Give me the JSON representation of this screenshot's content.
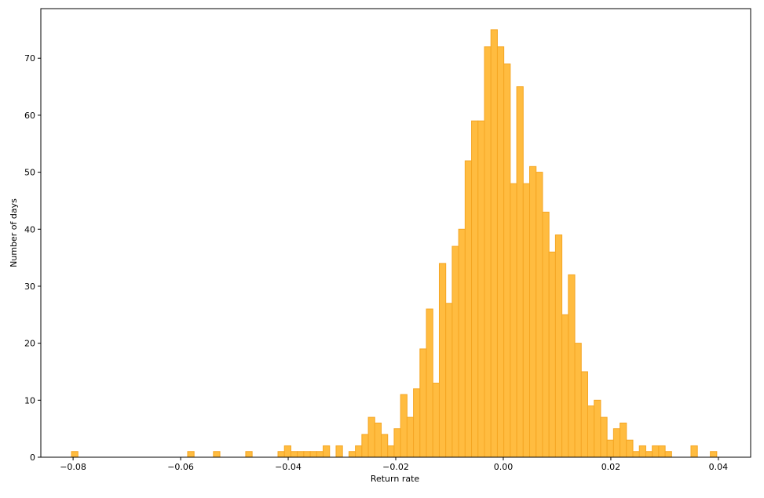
{
  "chart_data": {
    "type": "histogram",
    "xlabel": "Return rate",
    "ylabel": "Number of days",
    "bins": [
      -0.0803,
      -0.0791,
      -0.0779,
      -0.0767,
      -0.0755,
      -0.0743,
      -0.0731,
      -0.0719,
      -0.0707,
      -0.0695,
      -0.0683,
      -0.0671,
      -0.0659,
      -0.0647,
      -0.0635,
      -0.0623,
      -0.0611,
      -0.0599,
      -0.0587,
      -0.0575,
      -0.0563,
      -0.0551,
      -0.0539,
      -0.0527,
      -0.0515,
      -0.0503,
      -0.0491,
      -0.0479,
      -0.0467,
      -0.0455,
      -0.0443,
      -0.0431,
      -0.0419,
      -0.0407,
      -0.0395,
      -0.0383,
      -0.0371,
      -0.0359,
      -0.0347,
      -0.0335,
      -0.0323,
      -0.0311,
      -0.0299,
      -0.0287,
      -0.0275,
      -0.0263,
      -0.0251,
      -0.0239,
      -0.0227,
      -0.0215,
      -0.0203,
      -0.0191,
      -0.0179,
      -0.0167,
      -0.0155,
      -0.0143,
      -0.0131,
      -0.0119,
      -0.0107,
      -0.0095,
      -0.0083,
      -0.0071,
      -0.0059,
      -0.0047,
      -0.0035,
      -0.0023,
      -0.0011,
      0.0001,
      0.0013,
      0.0025,
      0.0037,
      0.0049,
      0.0061,
      0.0073,
      0.0085,
      0.0097,
      0.0109,
      0.0121,
      0.0133,
      0.0145,
      0.0157,
      0.0169,
      0.0181,
      0.0193,
      0.0205,
      0.0217,
      0.0229,
      0.0241,
      0.0253,
      0.0265,
      0.0277,
      0.0289,
      0.0301,
      0.0313,
      0.0325,
      0.0337,
      0.0349,
      0.0361,
      0.0373,
      0.0385,
      0.0397
    ],
    "values": [
      1,
      0,
      0,
      0,
      0,
      0,
      0,
      0,
      0,
      0,
      0,
      0,
      0,
      0,
      0,
      0,
      0,
      0,
      1,
      0,
      0,
      0,
      1,
      0,
      0,
      0,
      0,
      1,
      0,
      0,
      0,
      0,
      1,
      2,
      1,
      1,
      1,
      1,
      1,
      2,
      0,
      2,
      0,
      1,
      2,
      4,
      7,
      6,
      4,
      2,
      5,
      11,
      7,
      12,
      19,
      26,
      13,
      34,
      27,
      37,
      40,
      52,
      59,
      59,
      72,
      75,
      72,
      69,
      48,
      65,
      48,
      51,
      50,
      43,
      36,
      39,
      25,
      32,
      20,
      15,
      9,
      10,
      7,
      3,
      5,
      6,
      3,
      1,
      2,
      1,
      2,
      2,
      1,
      0,
      0,
      0,
      2,
      0,
      0,
      1
    ],
    "color": "#ffbc40",
    "edgecolor": "#f5a623",
    "xlim": [
      -0.086,
      0.046
    ],
    "xticks": [
      {
        "value": -0.08,
        "label": "−0.08"
      },
      {
        "value": -0.06,
        "label": "−0.06"
      },
      {
        "value": -0.04,
        "label": "−0.04"
      },
      {
        "value": -0.02,
        "label": "−0.02"
      },
      {
        "value": 0,
        "label": "0.00"
      },
      {
        "value": 0.02,
        "label": "0.02"
      },
      {
        "value": 0.04,
        "label": "0.04"
      }
    ],
    "ylim": [
      0,
      78.7
    ],
    "yticks": [
      0,
      10,
      20,
      30,
      40,
      50,
      60,
      70
    ]
  }
}
